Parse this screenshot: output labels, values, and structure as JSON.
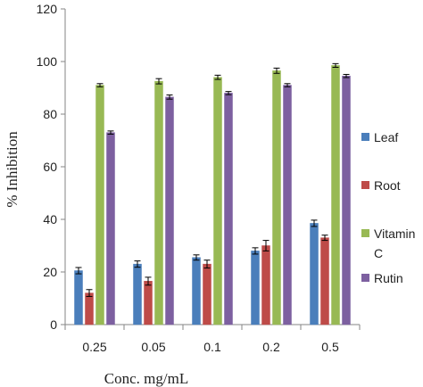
{
  "chart_data": {
    "type": "bar",
    "categories": [
      "0.25",
      "0.05",
      "0.1",
      "0.2",
      "0.5"
    ],
    "xlabel": "Conc. mg/mL",
    "ylabel": "% Inhibition",
    "ylim": [
      0,
      120
    ],
    "yticks": [
      "0",
      "20",
      "40",
      "60",
      "80",
      "100",
      "120"
    ],
    "grid": false,
    "legend_position": "right",
    "error_bars": true,
    "series": [
      {
        "name": "Leaf",
        "color": "#4a7ebb",
        "values": [
          20.5,
          23,
          25.5,
          28,
          38.5
        ],
        "errors": [
          1.2,
          1.2,
          1.0,
          1.2,
          1.2
        ]
      },
      {
        "name": "Root",
        "color": "#be4b48",
        "values": [
          12,
          16.5,
          23,
          30,
          33
        ],
        "errors": [
          1.3,
          1.5,
          1.5,
          2.0,
          1.0
        ]
      },
      {
        "name": "Vitamin C",
        "color": "#98b954",
        "values": [
          91,
          92.5,
          94,
          96.5,
          98.5
        ],
        "errors": [
          0.6,
          1.0,
          0.8,
          1.0,
          0.7
        ]
      },
      {
        "name": "Rutin",
        "color": "#7d60a0",
        "values": [
          73,
          86.5,
          88,
          91,
          94.5
        ],
        "errors": [
          0.6,
          0.8,
          0.6,
          0.6,
          0.6
        ]
      }
    ]
  }
}
